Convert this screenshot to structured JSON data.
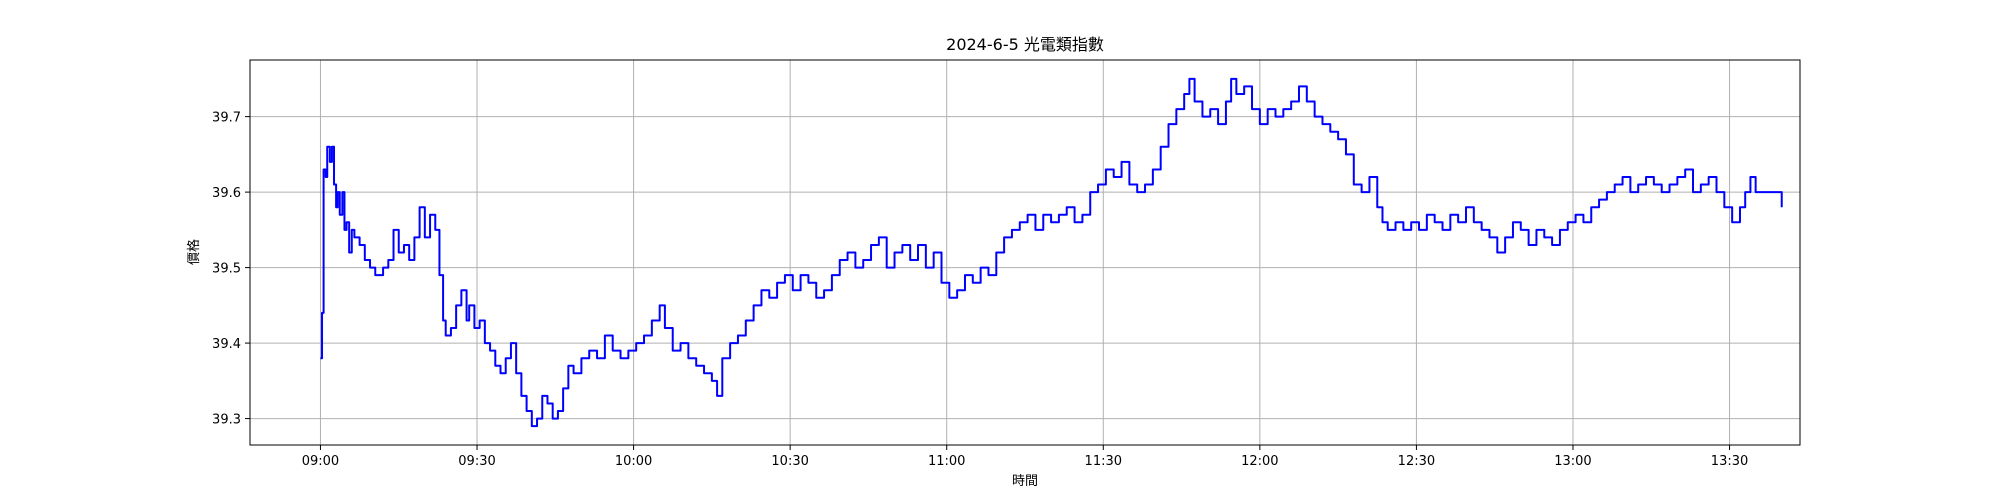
{
  "chart_data": {
    "type": "line",
    "title": "2024-6-5 光電類指數",
    "xlabel": "時間",
    "ylabel": "價格",
    "x_ticks": [
      "09:00",
      "09:30",
      "10:00",
      "10:30",
      "11:00",
      "11:30",
      "12:00",
      "12:30",
      "13:00",
      "13:30"
    ],
    "y_ticks": [
      39.3,
      39.4,
      39.5,
      39.6,
      39.7
    ],
    "xlim_minutes": [
      -13.5,
      283.5
    ],
    "ylim": [
      39.265,
      39.775
    ],
    "grid": true,
    "series": [
      {
        "color": "#0000ff",
        "points": [
          [
            0,
            39.38
          ],
          [
            0.3,
            39.44
          ],
          [
            0.6,
            39.63
          ],
          [
            1,
            39.62
          ],
          [
            1.3,
            39.66
          ],
          [
            1.8,
            39.64
          ],
          [
            2.2,
            39.66
          ],
          [
            2.6,
            39.61
          ],
          [
            3,
            39.58
          ],
          [
            3.3,
            39.6
          ],
          [
            3.7,
            39.57
          ],
          [
            4.2,
            39.6
          ],
          [
            4.6,
            39.55
          ],
          [
            5,
            39.56
          ],
          [
            5.5,
            39.52
          ],
          [
            6,
            39.55
          ],
          [
            6.5,
            39.54
          ],
          [
            7.5,
            39.53
          ],
          [
            8.5,
            39.51
          ],
          [
            9.5,
            39.5
          ],
          [
            10.5,
            39.49
          ],
          [
            12,
            39.5
          ],
          [
            13,
            39.51
          ],
          [
            14,
            39.55
          ],
          [
            15,
            39.52
          ],
          [
            16,
            39.53
          ],
          [
            17,
            39.51
          ],
          [
            18,
            39.54
          ],
          [
            19,
            39.58
          ],
          [
            20,
            39.54
          ],
          [
            21,
            39.57
          ],
          [
            22,
            39.55
          ],
          [
            22.8,
            39.49
          ],
          [
            23.5,
            39.43
          ],
          [
            24,
            39.41
          ],
          [
            25,
            39.42
          ],
          [
            26,
            39.45
          ],
          [
            27,
            39.47
          ],
          [
            28,
            39.43
          ],
          [
            28.5,
            39.45
          ],
          [
            29.5,
            39.42
          ],
          [
            30.5,
            39.43
          ],
          [
            31.5,
            39.4
          ],
          [
            32.5,
            39.39
          ],
          [
            33.5,
            39.37
          ],
          [
            34.5,
            39.36
          ],
          [
            35.5,
            39.38
          ],
          [
            36.5,
            39.4
          ],
          [
            37.5,
            39.36
          ],
          [
            38.5,
            39.33
          ],
          [
            39.5,
            39.31
          ],
          [
            40.5,
            39.29
          ],
          [
            41.5,
            39.3
          ],
          [
            42.5,
            39.33
          ],
          [
            43.5,
            39.32
          ],
          [
            44.5,
            39.3
          ],
          [
            45.5,
            39.31
          ],
          [
            46.5,
            39.34
          ],
          [
            47.5,
            39.37
          ],
          [
            48.5,
            39.36
          ],
          [
            50,
            39.38
          ],
          [
            51.5,
            39.39
          ],
          [
            53,
            39.38
          ],
          [
            54.5,
            39.41
          ],
          [
            56,
            39.39
          ],
          [
            57.5,
            39.38
          ],
          [
            59,
            39.39
          ],
          [
            60.5,
            39.4
          ],
          [
            62,
            39.41
          ],
          [
            63.5,
            39.43
          ],
          [
            65,
            39.45
          ],
          [
            66,
            39.42
          ],
          [
            67.5,
            39.39
          ],
          [
            69,
            39.4
          ],
          [
            70.5,
            39.38
          ],
          [
            72,
            39.37
          ],
          [
            73.5,
            39.36
          ],
          [
            75,
            39.35
          ],
          [
            76,
            39.33
          ],
          [
            77,
            39.38
          ],
          [
            78.5,
            39.4
          ],
          [
            80,
            39.41
          ],
          [
            81.5,
            39.43
          ],
          [
            83,
            39.45
          ],
          [
            84.5,
            39.47
          ],
          [
            86,
            39.46
          ],
          [
            87.5,
            39.48
          ],
          [
            89,
            39.49
          ],
          [
            90.5,
            39.47
          ],
          [
            92,
            39.49
          ],
          [
            93.5,
            39.48
          ],
          [
            95,
            39.46
          ],
          [
            96.5,
            39.47
          ],
          [
            98,
            39.49
          ],
          [
            99.5,
            39.51
          ],
          [
            101,
            39.52
          ],
          [
            102.5,
            39.5
          ],
          [
            104,
            39.51
          ],
          [
            105.5,
            39.53
          ],
          [
            107,
            39.54
          ],
          [
            108.5,
            39.5
          ],
          [
            110,
            39.52
          ],
          [
            111.5,
            39.53
          ],
          [
            113,
            39.51
          ],
          [
            114.5,
            39.53
          ],
          [
            116,
            39.5
          ],
          [
            117.5,
            39.52
          ],
          [
            119,
            39.48
          ],
          [
            120.5,
            39.46
          ],
          [
            122,
            39.47
          ],
          [
            123.5,
            39.49
          ],
          [
            125,
            39.48
          ],
          [
            126.5,
            39.5
          ],
          [
            128,
            39.49
          ],
          [
            129.5,
            39.52
          ],
          [
            131,
            39.54
          ],
          [
            132.5,
            39.55
          ],
          [
            134,
            39.56
          ],
          [
            135.5,
            39.57
          ],
          [
            137,
            39.55
          ],
          [
            138.5,
            39.57
          ],
          [
            140,
            39.56
          ],
          [
            141.5,
            39.57
          ],
          [
            143,
            39.58
          ],
          [
            144.5,
            39.56
          ],
          [
            146,
            39.57
          ],
          [
            147.5,
            39.6
          ],
          [
            149,
            39.61
          ],
          [
            150.5,
            39.63
          ],
          [
            152,
            39.62
          ],
          [
            153.5,
            39.64
          ],
          [
            155,
            39.61
          ],
          [
            156.5,
            39.6
          ],
          [
            158,
            39.61
          ],
          [
            159.5,
            39.63
          ],
          [
            161,
            39.66
          ],
          [
            162.5,
            39.69
          ],
          [
            164,
            39.71
          ],
          [
            165.5,
            39.73
          ],
          [
            166.5,
            39.75
          ],
          [
            167.5,
            39.72
          ],
          [
            169,
            39.7
          ],
          [
            170.5,
            39.71
          ],
          [
            172,
            39.69
          ],
          [
            173.5,
            39.72
          ],
          [
            174.5,
            39.75
          ],
          [
            175.5,
            39.73
          ],
          [
            177,
            39.74
          ],
          [
            178.5,
            39.71
          ],
          [
            180,
            39.69
          ],
          [
            181.5,
            39.71
          ],
          [
            183,
            39.7
          ],
          [
            184.5,
            39.71
          ],
          [
            186,
            39.72
          ],
          [
            187.5,
            39.74
          ],
          [
            189,
            39.72
          ],
          [
            190.5,
            39.7
          ],
          [
            192,
            39.69
          ],
          [
            193.5,
            39.68
          ],
          [
            195,
            39.67
          ],
          [
            196.5,
            39.65
          ],
          [
            198,
            39.61
          ],
          [
            199.5,
            39.6
          ],
          [
            201,
            39.62
          ],
          [
            202.5,
            39.58
          ],
          [
            203.5,
            39.56
          ],
          [
            204.5,
            39.55
          ],
          [
            206,
            39.56
          ],
          [
            207.5,
            39.55
          ],
          [
            209,
            39.56
          ],
          [
            210.5,
            39.55
          ],
          [
            212,
            39.57
          ],
          [
            213.5,
            39.56
          ],
          [
            215,
            39.55
          ],
          [
            216.5,
            39.57
          ],
          [
            218,
            39.56
          ],
          [
            219.5,
            39.58
          ],
          [
            221,
            39.56
          ],
          [
            222.5,
            39.55
          ],
          [
            224,
            39.54
          ],
          [
            225.5,
            39.52
          ],
          [
            227,
            39.54
          ],
          [
            228.5,
            39.56
          ],
          [
            230,
            39.55
          ],
          [
            231.5,
            39.53
          ],
          [
            233,
            39.55
          ],
          [
            234.5,
            39.54
          ],
          [
            236,
            39.53
          ],
          [
            237.5,
            39.55
          ],
          [
            239,
            39.56
          ],
          [
            240.5,
            39.57
          ],
          [
            242,
            39.56
          ],
          [
            243.5,
            39.58
          ],
          [
            245,
            39.59
          ],
          [
            246.5,
            39.6
          ],
          [
            248,
            39.61
          ],
          [
            249.5,
            39.62
          ],
          [
            251,
            39.6
          ],
          [
            252.5,
            39.61
          ],
          [
            254,
            39.62
          ],
          [
            255.5,
            39.61
          ],
          [
            257,
            39.6
          ],
          [
            258.5,
            39.61
          ],
          [
            260,
            39.62
          ],
          [
            261.5,
            39.63
          ],
          [
            263,
            39.6
          ],
          [
            264.5,
            39.61
          ],
          [
            266,
            39.62
          ],
          [
            267.5,
            39.6
          ],
          [
            269,
            39.58
          ],
          [
            270.5,
            39.56
          ],
          [
            272,
            39.58
          ],
          [
            273,
            39.6
          ],
          [
            274,
            39.62
          ],
          [
            275,
            39.6
          ],
          [
            276,
            39.6
          ],
          [
            278,
            39.6
          ],
          [
            279.8,
            39.6
          ],
          [
            280,
            39.58
          ]
        ]
      }
    ]
  }
}
